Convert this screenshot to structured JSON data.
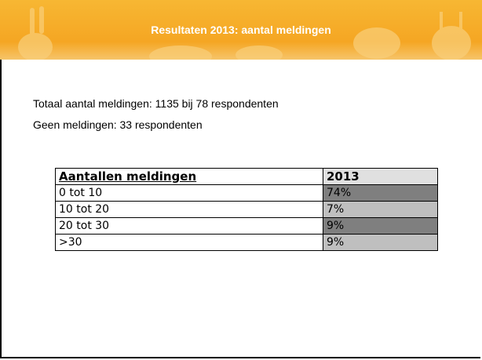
{
  "header": {
    "title": "Resultaten 2013: aantal meldingen"
  },
  "body": {
    "lines": [
      "Totaal aantal meldingen: 1135 bij 78 respondenten",
      "Geen meldingen: 33 respondenten"
    ]
  },
  "table": {
    "header": [
      "Aantallen meldingen",
      "2013"
    ],
    "rows": [
      [
        "0 tot 10",
        "74%"
      ],
      [
        "10 tot 20",
        "7%"
      ],
      [
        "20 tot 30",
        "9%"
      ],
      [
        ">30",
        "9%"
      ]
    ]
  }
}
